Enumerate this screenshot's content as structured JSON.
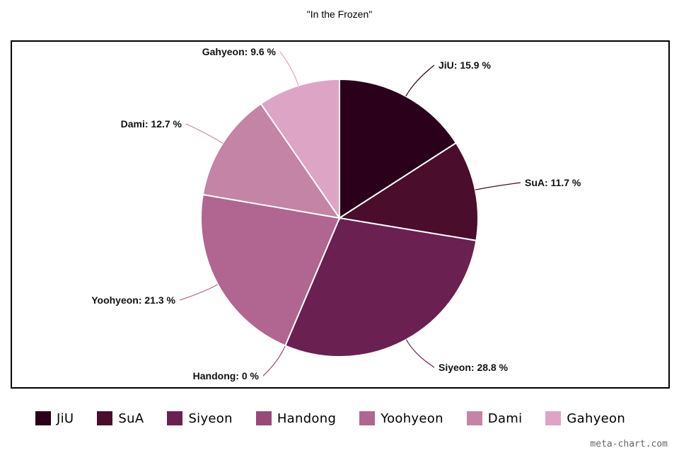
{
  "chart_data": {
    "type": "pie",
    "title": "\"In the Frozen\"",
    "categories": [
      "JiU",
      "SuA",
      "Siyeon",
      "Handong",
      "Yoohyeon",
      "Dami",
      "Gahyeon"
    ],
    "values": [
      15.9,
      11.7,
      28.8,
      0,
      21.3,
      12.7,
      9.6
    ],
    "data_labels": [
      "JiU: 15.9 %",
      "SuA: 11.7 %",
      "Siyeon: 28.8 %",
      "Handong: 0 %",
      "Yoohyeon: 21.3 %",
      "Dami: 12.7 %",
      "Gahyeon: 9.6 %"
    ],
    "colors": [
      "#2a001a",
      "#4a0d2c",
      "#6a2050",
      "#9a4878",
      "#b06690",
      "#c484a6",
      "#dea4c6"
    ],
    "legend_position": "bottom"
  },
  "watermark": "meta-chart.com"
}
